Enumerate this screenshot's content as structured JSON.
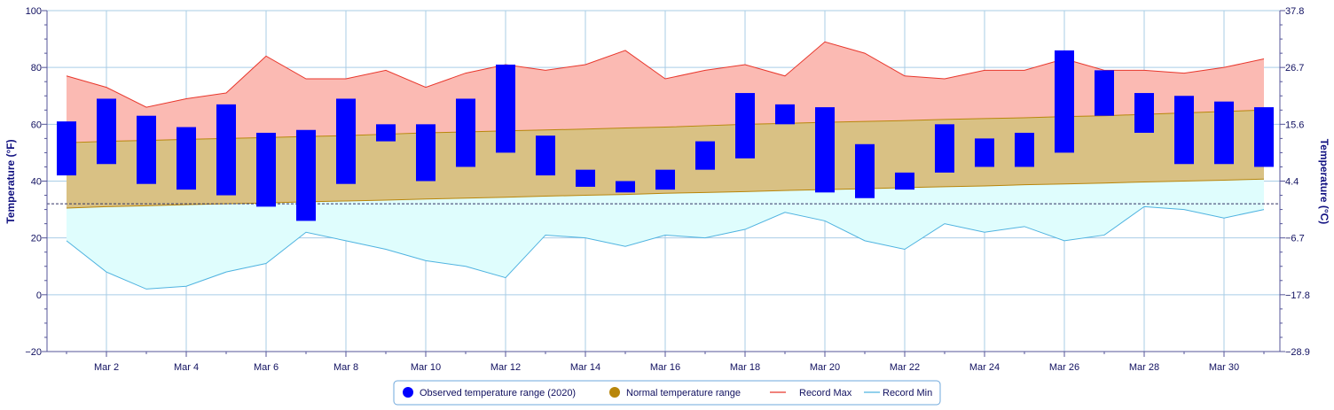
{
  "chart_data": {
    "type": "bar",
    "y_left": {
      "label": "Temperature (°F)",
      "range": [
        -20,
        100
      ],
      "ticks": [
        "100",
        "80",
        "60",
        "40",
        "20",
        "0",
        "−20"
      ]
    },
    "y_right": {
      "label": "Temperature (°C)",
      "ticks": [
        "37.8",
        "26.7",
        "15.6",
        "4.4",
        "−6.7",
        "−17.8",
        "−28.9"
      ]
    },
    "x_tick_labels": [
      "Mar 2",
      "Mar 4",
      "Mar 6",
      "Mar 8",
      "Mar 10",
      "Mar 12",
      "Mar 14",
      "Mar 16",
      "Mar 18",
      "Mar 20",
      "Mar 22",
      "Mar 24",
      "Mar 26",
      "Mar 28",
      "Mar 30"
    ],
    "days": [
      1,
      2,
      3,
      4,
      5,
      6,
      7,
      8,
      9,
      10,
      11,
      12,
      13,
      14,
      15,
      16,
      17,
      18,
      19,
      20,
      21,
      22,
      23,
      24,
      25,
      26,
      27,
      28,
      29,
      30,
      31
    ],
    "freezing_line": 32,
    "series": [
      {
        "name": "Observed temperature range (2020)",
        "color": "#0000ff",
        "low": [
          42,
          46,
          39,
          37,
          35,
          31,
          26,
          39,
          54,
          40,
          45,
          50,
          42,
          38,
          36,
          37,
          44,
          48,
          60,
          36,
          34,
          37,
          43,
          45,
          45,
          50,
          63,
          57,
          46,
          46,
          45
        ],
        "high": [
          61,
          69,
          63,
          59,
          67,
          57,
          58,
          69,
          60,
          60,
          69,
          81,
          56,
          44,
          40,
          44,
          54,
          71,
          67,
          66,
          53,
          43,
          60,
          55,
          57,
          86,
          79,
          71,
          70,
          68,
          66
        ]
      },
      {
        "name": "Normal temperature range",
        "color": "#b8860b",
        "low": [
          30.5,
          31.0,
          31.3,
          31.7,
          32.0,
          32.3,
          32.7,
          33.0,
          33.3,
          33.7,
          34.0,
          34.3,
          34.7,
          35.0,
          35.3,
          35.7,
          36.0,
          36.3,
          36.7,
          37.0,
          37.3,
          37.7,
          38.0,
          38.3,
          38.7,
          39.0,
          39.3,
          39.7,
          40.0,
          40.3,
          40.7
        ],
        "high": [
          53.5,
          54.0,
          54.3,
          54.7,
          55.0,
          55.3,
          55.7,
          56.0,
          56.5,
          57.0,
          57.3,
          57.7,
          58.0,
          58.3,
          58.7,
          59.0,
          59.5,
          60.0,
          60.3,
          60.7,
          61.0,
          61.3,
          61.7,
          62.0,
          62.3,
          62.7,
          63.0,
          63.5,
          64.0,
          64.5,
          65.0
        ]
      },
      {
        "name": "Record Max",
        "color": "#e8372c",
        "values": [
          77,
          73,
          66,
          69,
          71,
          84,
          76,
          76,
          79,
          73,
          78,
          81,
          79,
          81,
          86,
          76,
          79,
          81,
          77,
          89,
          85,
          77,
          76,
          79,
          79,
          83,
          79,
          79,
          78,
          80,
          83
        ]
      },
      {
        "name": "Record Min",
        "color": "#4fb3e0",
        "values": [
          19,
          8,
          2,
          3,
          8,
          11,
          22,
          19,
          16,
          12,
          10,
          6,
          21,
          20,
          17,
          21,
          20,
          23,
          29,
          26,
          19,
          16,
          25,
          22,
          24,
          19,
          21,
          31,
          30,
          27,
          30
        ]
      }
    ]
  }
}
